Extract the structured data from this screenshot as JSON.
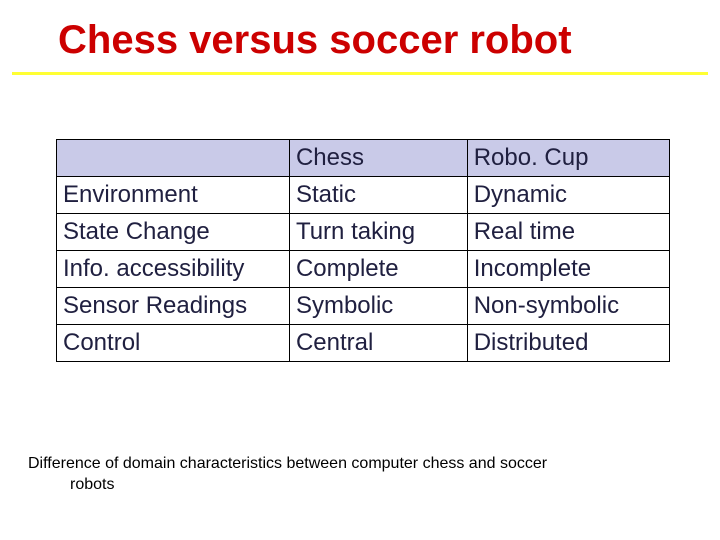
{
  "title": "Chess versus soccer robot",
  "table": {
    "header": {
      "c0": "",
      "c1": "Chess",
      "c2": "Robo. Cup"
    },
    "rows": [
      {
        "c0": "Environment",
        "c1": "Static",
        "c2": "Dynamic"
      },
      {
        "c0": "State Change",
        "c1": "Turn taking",
        "c2": "Real time"
      },
      {
        "c0": "Info. accessibility",
        "c1": "Complete",
        "c2": "Incomplete"
      },
      {
        "c0": "Sensor Readings",
        "c1": "Symbolic",
        "c2": "Non-symbolic"
      },
      {
        "c0": "Control",
        "c1": "Central",
        "c2": "Distributed"
      }
    ]
  },
  "caption_line1": "Difference of domain characteristics between computer chess and soccer",
  "caption_line2": "robots",
  "colors": {
    "title_color": "#cc0000",
    "underline_color": "#ffff33",
    "header_bg": "#c9cae8",
    "border_color": "#000000",
    "text_color": "#202040",
    "background": "#ffffff"
  }
}
